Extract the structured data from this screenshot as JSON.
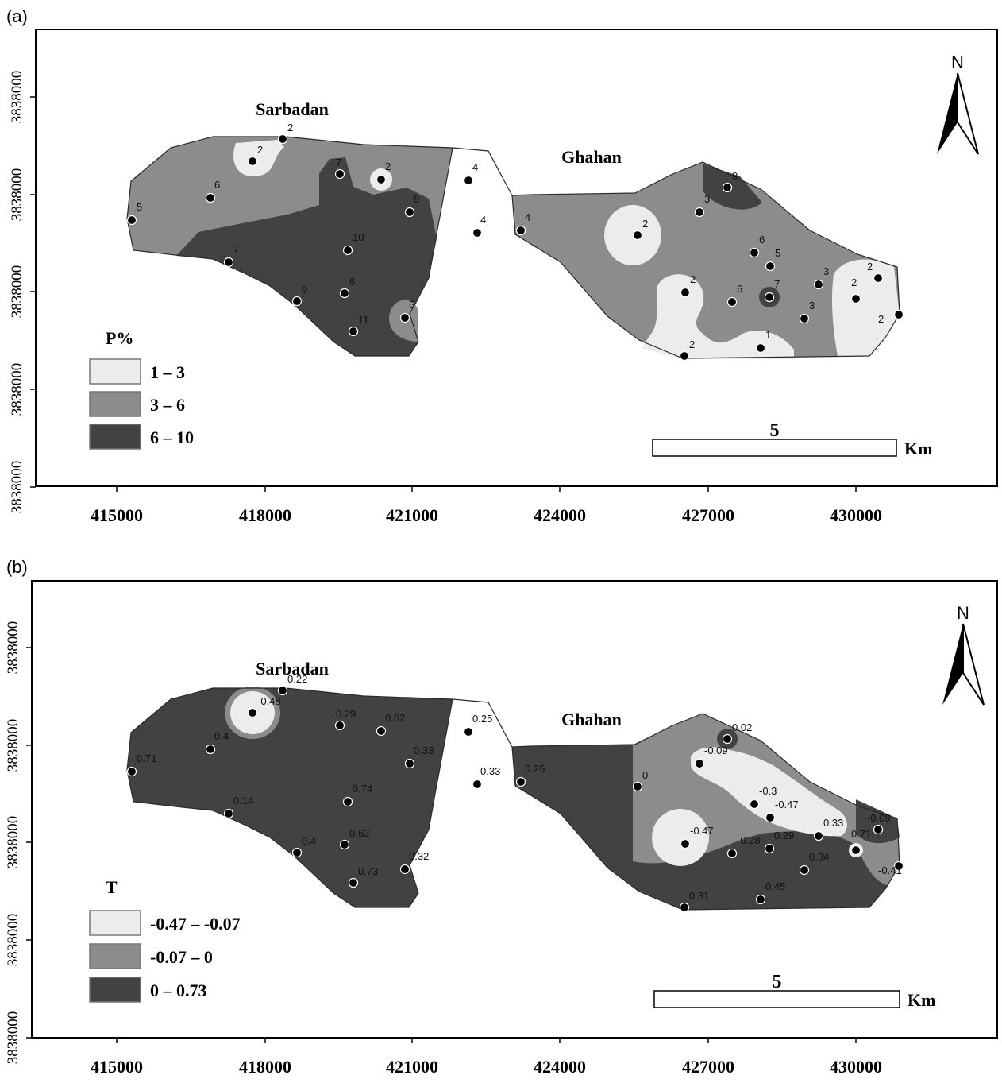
{
  "x_ticks": [
    "415000",
    "418000",
    "421000",
    "424000",
    "427000",
    "430000"
  ],
  "y_tick_label": "3838000",
  "panels": [
    {
      "id": "a",
      "panel_label": "(a)",
      "place_labels": [
        "Sarbadan",
        "Ghahan"
      ],
      "north": "N",
      "scale_value": "5",
      "scale_unit": "Km",
      "legend": {
        "title": "P%",
        "classes": [
          {
            "label": "1 – 3",
            "color": "#ececec"
          },
          {
            "label": "3 – 6",
            "color": "#8c8c8c"
          },
          {
            "label": "6 – 10",
            "color": "#424242"
          }
        ]
      },
      "samples": [
        "2",
        "2",
        "2",
        "7",
        "4",
        "6",
        "5",
        "8",
        "4",
        "4",
        "10",
        "7",
        "6",
        "9",
        "11",
        "5",
        "2",
        "9",
        "3",
        "6",
        "5",
        "2",
        "7",
        "6",
        "3",
        "3",
        "2",
        "2",
        "2",
        "2",
        "1"
      ]
    },
    {
      "id": "b",
      "panel_label": "(b)",
      "place_labels": [
        "Sarbadan",
        "Ghahan"
      ],
      "north": "N",
      "scale_value": "5",
      "scale_unit": "Km",
      "legend": {
        "title": "T",
        "classes": [
          {
            "label": "-0.47 – -0.07",
            "color": "#ececec"
          },
          {
            "label": "-0.07 – 0",
            "color": "#8c8c8c"
          },
          {
            "label": "0 – 0.73",
            "color": "#424242"
          }
        ]
      },
      "samples": [
        "-0.48",
        "0.22",
        "0.62",
        "0.29",
        "0.25",
        "0.4",
        "0.71",
        "0.33",
        "0.33",
        "0.25",
        "0.74",
        "0.14",
        "0.62",
        "0.4",
        "0.73",
        "0.32",
        "0",
        "0.02",
        "-0.09",
        "-0.3",
        "-0.47",
        "-0.47",
        "0.29",
        "-0.28",
        "0.33",
        "0.34",
        "0.71",
        "-0.09",
        "-0.41",
        "0.31",
        "0.45"
      ]
    }
  ]
}
